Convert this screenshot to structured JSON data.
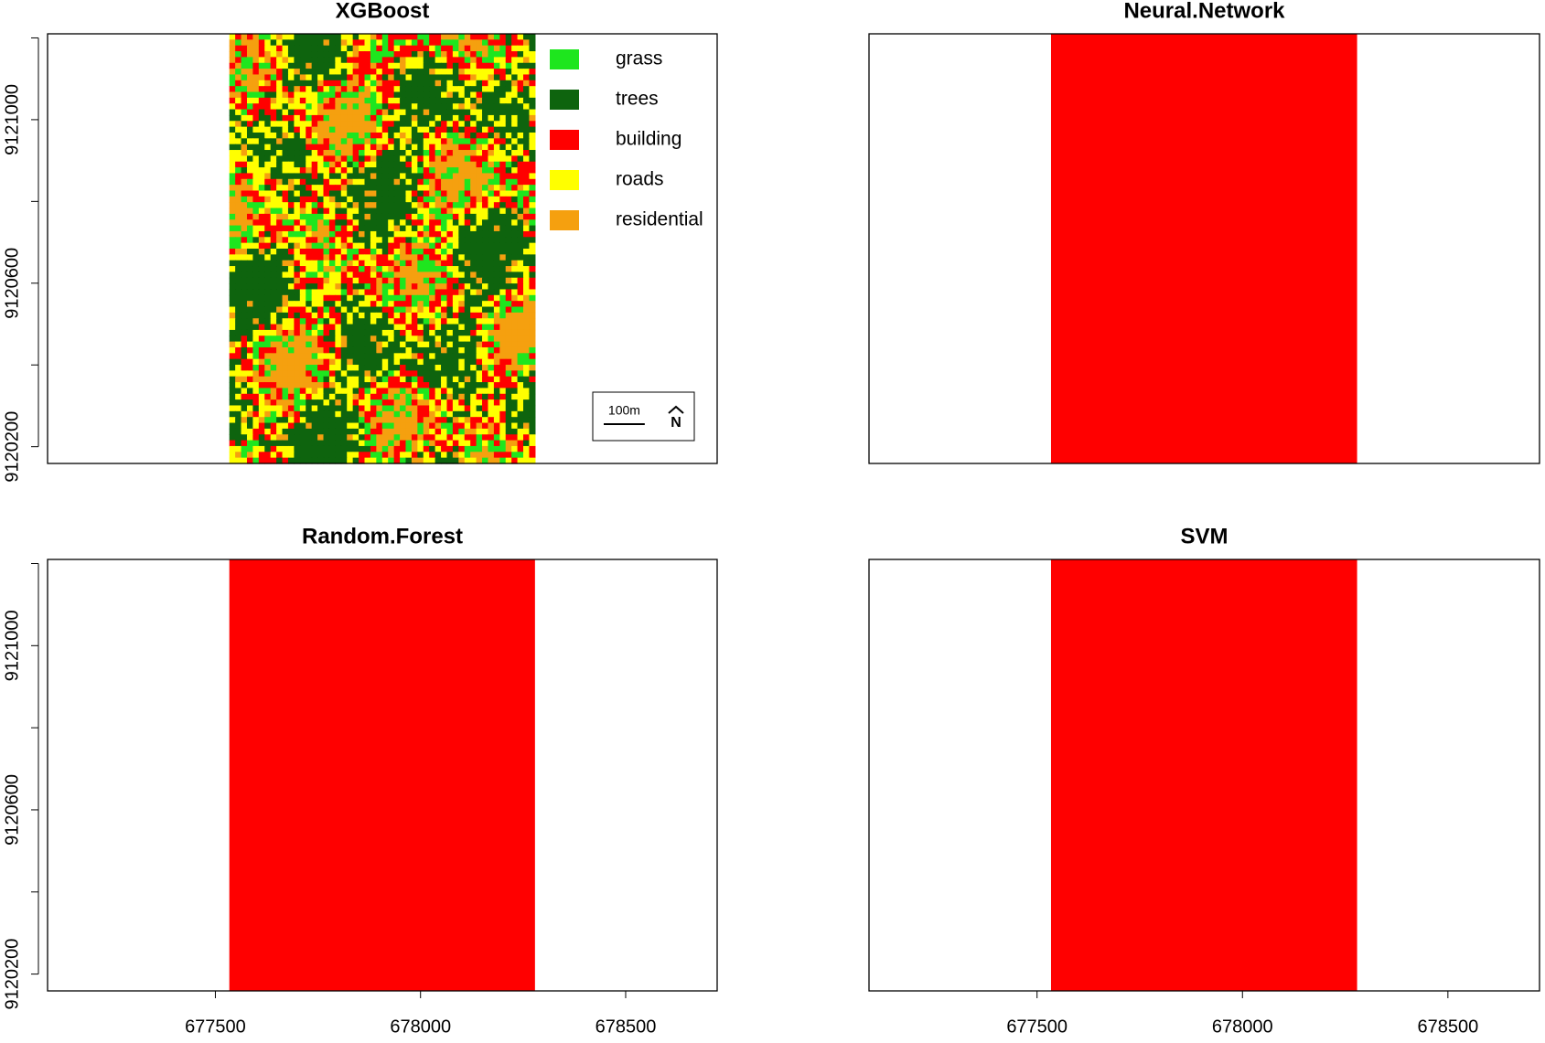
{
  "axes": {
    "xlim": [
      677091,
      678723
    ],
    "ylim": [
      9120159,
      9121210
    ],
    "xticks": [
      677500,
      678000,
      678500
    ],
    "yticks": [
      9120200,
      9120600,
      9121000
    ],
    "yticks_unlabeled": [
      9120400,
      9120800,
      9121200
    ],
    "raster_xlim": [
      677534,
      678279
    ]
  },
  "panels": [
    {
      "title": "XGBoost",
      "fill": "classified"
    },
    {
      "title": "Neural.Network",
      "fill": "#ff0000"
    },
    {
      "title": "Random.Forest",
      "fill": "#ff0000"
    },
    {
      "title": "SVM",
      "fill": "#ff0000"
    }
  ],
  "legend": [
    {
      "name": "grass",
      "color": "#1ee61e"
    },
    {
      "name": "trees",
      "color": "#0e640e"
    },
    {
      "name": "building",
      "color": "#ff0000"
    },
    {
      "name": "roads",
      "color": "#ffff00"
    },
    {
      "name": "residential",
      "color": "#f5a00f"
    }
  ],
  "scalebar": {
    "label": "100m",
    "length": 100
  },
  "north": "N"
}
